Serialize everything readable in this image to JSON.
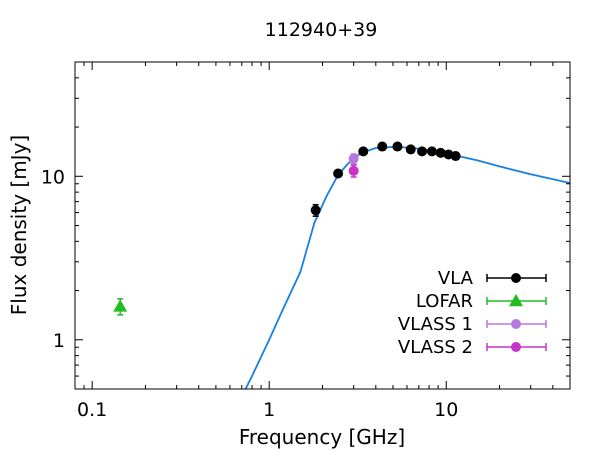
{
  "chart_data": {
    "type": "scatter",
    "title": "112940+39",
    "xlabel": "Frequency [GHz]",
    "ylabel": "Flux density [mJy]",
    "xscale": "log",
    "yscale": "log",
    "xlim": [
      0.08,
      50
    ],
    "ylim": [
      0.5,
      50
    ],
    "x_ticks": [
      {
        "value": 0.1,
        "label": "0.1"
      },
      {
        "value": 1,
        "label": "1"
      },
      {
        "value": 10,
        "label": "10"
      }
    ],
    "y_ticks": [
      {
        "value": 1,
        "label": "1"
      },
      {
        "value": 10,
        "label": "10"
      }
    ],
    "legend_position": "lower-right",
    "series": [
      {
        "name": "VLA",
        "color": "#000000",
        "marker": "circle",
        "points": [
          {
            "x": 1.83,
            "y": 6.2,
            "yerr": 0.5
          },
          {
            "x": 2.45,
            "y": 10.4,
            "yerr": 0.3
          },
          {
            "x": 3.4,
            "y": 14.2,
            "yerr": 0.3
          },
          {
            "x": 4.35,
            "y": 15.2,
            "yerr": 0.3
          },
          {
            "x": 5.3,
            "y": 15.2,
            "yerr": 0.3
          },
          {
            "x": 6.3,
            "y": 14.6,
            "yerr": 0.3
          },
          {
            "x": 7.3,
            "y": 14.2,
            "yerr": 0.3
          },
          {
            "x": 8.3,
            "y": 14.2,
            "yerr": 0.3
          },
          {
            "x": 9.3,
            "y": 13.9,
            "yerr": 0.3
          },
          {
            "x": 10.3,
            "y": 13.6,
            "yerr": 0.3
          },
          {
            "x": 11.3,
            "y": 13.3,
            "yerr": 0.3
          }
        ]
      },
      {
        "name": "LOFAR",
        "color": "#22bb22",
        "marker": "triangle",
        "points": [
          {
            "x": 0.144,
            "y": 1.6,
            "yerr": 0.18
          }
        ]
      },
      {
        "name": "VLASS 1",
        "color": "#b878e0",
        "marker": "circle",
        "points": [
          {
            "x": 3.0,
            "y": 12.8,
            "yerr": 0.9
          }
        ]
      },
      {
        "name": "VLASS 2",
        "color": "#c832c8",
        "marker": "circle",
        "points": [
          {
            "x": 3.0,
            "y": 10.8,
            "yerr": 0.9
          }
        ]
      }
    ],
    "model_curve": {
      "color": "#1a7fe0",
      "points": [
        {
          "x": 0.7,
          "y": 0.45
        },
        {
          "x": 0.8,
          "y": 0.6
        },
        {
          "x": 1.0,
          "y": 1.0
        },
        {
          "x": 1.2,
          "y": 1.55
        },
        {
          "x": 1.5,
          "y": 2.6
        },
        {
          "x": 1.8,
          "y": 5.2
        },
        {
          "x": 2.1,
          "y": 7.5
        },
        {
          "x": 2.45,
          "y": 10.2
        },
        {
          "x": 2.8,
          "y": 12.0
        },
        {
          "x": 3.3,
          "y": 13.9
        },
        {
          "x": 4.0,
          "y": 14.9
        },
        {
          "x": 5.0,
          "y": 15.1
        },
        {
          "x": 6.0,
          "y": 15.0
        },
        {
          "x": 7.5,
          "y": 14.6
        },
        {
          "x": 10.0,
          "y": 13.8
        },
        {
          "x": 15.0,
          "y": 12.5
        },
        {
          "x": 20.0,
          "y": 11.5
        },
        {
          "x": 30.0,
          "y": 10.3
        },
        {
          "x": 50.0,
          "y": 9.1
        }
      ]
    }
  }
}
